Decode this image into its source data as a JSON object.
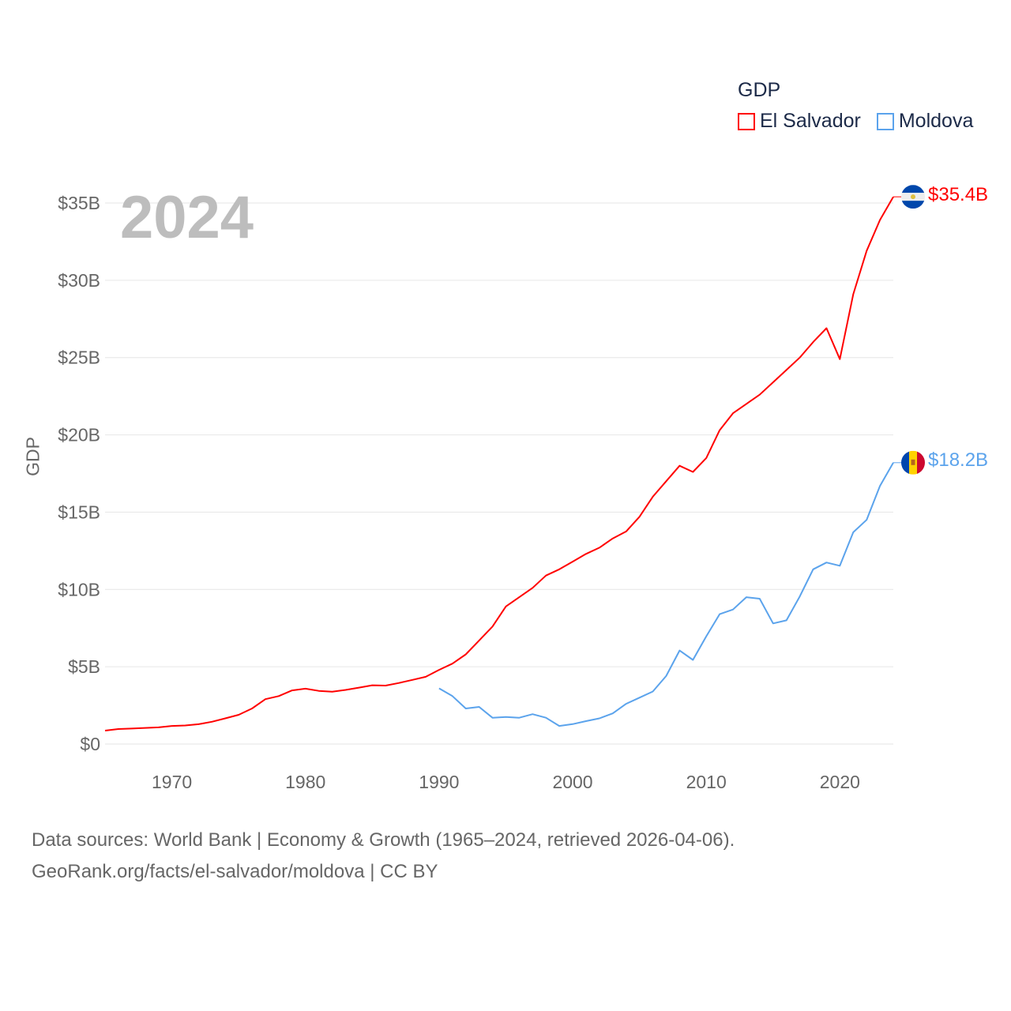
{
  "legend": {
    "title": "GDP",
    "items": [
      {
        "label": "El Salvador",
        "color": "#ff0000"
      },
      {
        "label": "Moldova",
        "color": "#5ba3ec"
      }
    ]
  },
  "year_label": "2024",
  "end_labels": {
    "el_salvador": "$35.4B",
    "moldova": "$18.2B"
  },
  "footer": {
    "line1": "Data sources: World Bank | Economy & Growth (1965–2024, retrieved 2026-04-06).",
    "line2": "GeoRank.org/facts/el-salvador/moldova | CC BY"
  },
  "chart_data": {
    "type": "line",
    "title": "GDP",
    "xlabel": "",
    "ylabel": "GDP",
    "xlim": [
      1965,
      2024
    ],
    "ylim": [
      0,
      35
    ],
    "x_ticks": [
      1970,
      1980,
      1990,
      2000,
      2010,
      2020
    ],
    "y_ticks": [
      {
        "v": 0,
        "label": "$0"
      },
      {
        "v": 5,
        "label": "$5B"
      },
      {
        "v": 10,
        "label": "$10B"
      },
      {
        "v": 15,
        "label": "$15B"
      },
      {
        "v": 20,
        "label": "$20B"
      },
      {
        "v": 25,
        "label": "$25B"
      },
      {
        "v": 30,
        "label": "$30B"
      },
      {
        "v": 35,
        "label": "$35B"
      }
    ],
    "grid": true,
    "legend_position": "top-right",
    "series": [
      {
        "name": "El Salvador",
        "color": "#ff0000",
        "start_year": 1965,
        "values": [
          0.87,
          0.97,
          1.0,
          1.04,
          1.08,
          1.17,
          1.2,
          1.28,
          1.44,
          1.66,
          1.89,
          2.3,
          2.9,
          3.1,
          3.47,
          3.58,
          3.44,
          3.38,
          3.5,
          3.65,
          3.8,
          3.78,
          3.95,
          4.15,
          4.35,
          4.8,
          5.2,
          5.8,
          6.7,
          7.6,
          8.9,
          9.5,
          10.1,
          10.9,
          11.3,
          11.8,
          12.3,
          12.7,
          13.3,
          13.75,
          14.7,
          16.0,
          17.0,
          18.0,
          17.6,
          18.5,
          20.3,
          21.4,
          22.0,
          22.6,
          23.4,
          24.2,
          25.0,
          26.0,
          26.9,
          24.9,
          29.1,
          31.9,
          33.9,
          35.4
        ]
      },
      {
        "name": "Moldova",
        "color": "#5ba3ec",
        "start_year": 1990,
        "values": [
          3.6,
          3.1,
          2.3,
          2.4,
          1.7,
          1.75,
          1.7,
          1.93,
          1.7,
          1.17,
          1.29,
          1.48,
          1.66,
          1.98,
          2.6,
          3.0,
          3.4,
          4.4,
          6.05,
          5.44,
          6.97,
          8.4,
          8.7,
          9.5,
          9.4,
          7.8,
          8.0,
          9.55,
          11.3,
          11.74,
          11.53,
          13.7,
          14.5,
          16.7,
          18.2
        ]
      }
    ]
  }
}
